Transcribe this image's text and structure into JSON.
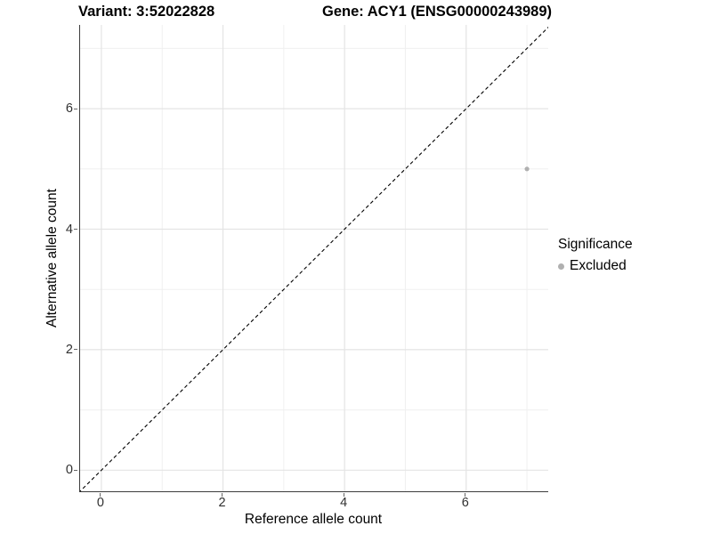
{
  "header": {
    "variant_title": "Variant: 3:52022828",
    "gene_title": "Gene: ACY1 (ENSG00000243989)"
  },
  "chart_data": {
    "type": "scatter",
    "title": "Variant: 3:52022828   Gene: ACY1 (ENSG00000243989)",
    "xlabel": "Reference allele count",
    "ylabel": "Alternative allele count",
    "xlim": [
      -0.35,
      7.35
    ],
    "ylim": [
      -0.35,
      7.39
    ],
    "x_ticks": {
      "values": [
        0,
        2,
        4,
        6
      ],
      "labels": [
        "0",
        "2",
        "4",
        "6"
      ]
    },
    "y_ticks": {
      "values": [
        0,
        2,
        4,
        6
      ],
      "labels": [
        "0",
        "2",
        "4",
        "6"
      ]
    },
    "x_minor_ticks": [
      1,
      3,
      5,
      7
    ],
    "y_minor_ticks": [
      1,
      3,
      5,
      7
    ],
    "grid": "major+minor",
    "series": [
      {
        "name": "Excluded",
        "color": "#b0b0b0",
        "points": [
          {
            "x": 7,
            "y": 5
          }
        ]
      }
    ],
    "reference_line": {
      "type": "identity",
      "slope": 1,
      "intercept": 0,
      "style": "dashed",
      "color": "#000000"
    },
    "legend": {
      "title": "Significance",
      "position": "right",
      "items": [
        {
          "label": "Excluded",
          "color": "#b0b0b0"
        }
      ]
    }
  },
  "colors": {
    "background": "#ffffff",
    "grid_major": "#e4e4e4",
    "grid_minor": "#f0f0f0",
    "axis_line": "#3c3c3c",
    "tick_mark": "#666666",
    "tick_label": "#303030",
    "point": "#b0b0b0",
    "reference_line": "#000000"
  }
}
